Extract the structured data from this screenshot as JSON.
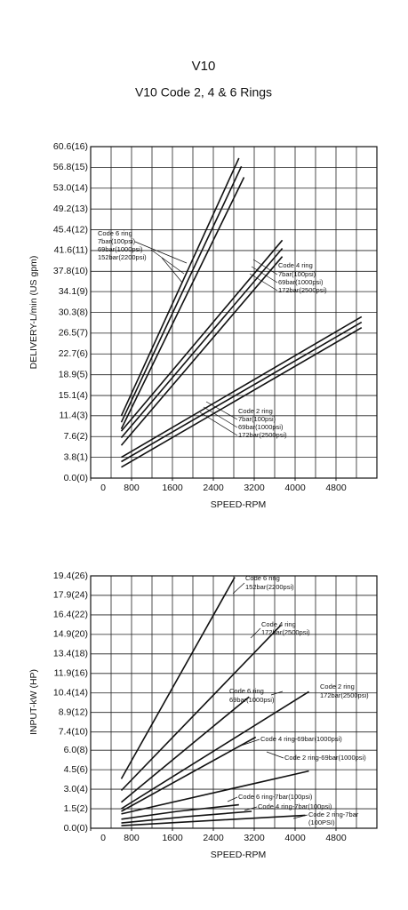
{
  "header": {
    "title": "V10",
    "subtitle": "V10 Code 2, 4 & 6 Rings"
  },
  "chart_data": [
    {
      "type": "line",
      "x_label": "SPEED-RPM",
      "y_label": "DELIVERY-L/min (US gpm)",
      "xlim": [
        0,
        5600
      ],
      "xticks": [
        0,
        800,
        1600,
        2400,
        3200,
        4000,
        4800
      ],
      "xgrid": [
        400,
        800,
        1200,
        1600,
        2000,
        2400,
        2800,
        3200,
        3600,
        4000,
        4400,
        4800,
        5200
      ],
      "ylim": [
        0,
        60.6
      ],
      "grid": true,
      "yticks": [
        {
          "value": 0,
          "label": "0.0(0)"
        },
        {
          "value": 3.8,
          "label": "3.8(1)"
        },
        {
          "value": 7.6,
          "label": "7.6(2)"
        },
        {
          "value": 11.4,
          "label": "11.4(3)"
        },
        {
          "value": 15.1,
          "label": "15.1(4)"
        },
        {
          "value": 18.9,
          "label": "18.9(5)"
        },
        {
          "value": 22.7,
          "label": "22.7(6)"
        },
        {
          "value": 26.5,
          "label": "26.5(7)"
        },
        {
          "value": 30.3,
          "label": "30.3(8)"
        },
        {
          "value": 34.1,
          "label": "34.1(9)"
        },
        {
          "value": 37.8,
          "label": "37.8(10)"
        },
        {
          "value": 41.6,
          "label": "41.6(11)"
        },
        {
          "value": 45.4,
          "label": "45.4(12)"
        },
        {
          "value": 49.2,
          "label": "49.2(13)"
        },
        {
          "value": 53.0,
          "label": "53.0(14)"
        },
        {
          "value": 56.8,
          "label": "56.8(15)"
        },
        {
          "value": 60.6,
          "label": "60.6(16)"
        }
      ],
      "series": [
        {
          "color": "#111111",
          "x": [
            600,
            2900
          ],
          "values": [
            11.4,
            58.5
          ]
        },
        {
          "color": "#111111",
          "x": [
            600,
            2950
          ],
          "values": [
            10.2,
            57.0
          ]
        },
        {
          "color": "#111111",
          "x": [
            600,
            3000
          ],
          "values": [
            9.0,
            55.0
          ]
        },
        {
          "color": "#111111",
          "x": [
            600,
            3750
          ],
          "values": [
            8.6,
            43.5
          ]
        },
        {
          "color": "#111111",
          "x": [
            600,
            3750
          ],
          "values": [
            7.4,
            42.0
          ]
        },
        {
          "color": "#111111",
          "x": [
            600,
            3750
          ],
          "values": [
            6.0,
            40.5
          ]
        },
        {
          "color": "#111111",
          "x": [
            600,
            5300
          ],
          "values": [
            3.8,
            29.5
          ]
        },
        {
          "color": "#111111",
          "x": [
            600,
            5300
          ],
          "values": [
            3.0,
            28.5
          ]
        },
        {
          "color": "#111111",
          "x": [
            600,
            5300
          ],
          "values": [
            2.0,
            27.5
          ]
        }
      ],
      "annotations": [
        "Code 6 ring",
        "7bar(100psi)",
        "69bar(1000psi)",
        "152bar(2200psi)",
        "Code 4 ring",
        "7bar(100psi)",
        "69bar(1000psi)",
        "172bar(2500psi)",
        "Code 2 ring",
        "7bar(100psi)",
        "69bar(1000psi)",
        "172bar(2500psi)"
      ]
    },
    {
      "type": "line",
      "x_label": "SPEED-RPM",
      "y_label": "INPUT-kW (HP)",
      "xlim": [
        0,
        5600
      ],
      "xticks": [
        0,
        800,
        1600,
        2400,
        3200,
        4000,
        4800
      ],
      "xgrid": [
        400,
        800,
        1200,
        1600,
        2000,
        2400,
        2800,
        3200,
        3600,
        4000,
        4400,
        4800,
        5200
      ],
      "ylim": [
        0,
        19.4
      ],
      "grid": true,
      "yticks": [
        {
          "value": 0,
          "label": "0.0(0)"
        },
        {
          "value": 1.5,
          "label": "1.5(2)"
        },
        {
          "value": 3.0,
          "label": "3.0(4)"
        },
        {
          "value": 4.5,
          "label": "4.5(6)"
        },
        {
          "value": 6.0,
          "label": "6.0(8)"
        },
        {
          "value": 7.4,
          "label": "7.4(10)"
        },
        {
          "value": 8.9,
          "label": "8.9(12)"
        },
        {
          "value": 10.4,
          "label": "10.4(14)"
        },
        {
          "value": 11.9,
          "label": "11.9(16)"
        },
        {
          "value": 13.4,
          "label": "13.4(18)"
        },
        {
          "value": 14.9,
          "label": "14.9(20)"
        },
        {
          "value": 16.4,
          "label": "16.4(22)"
        },
        {
          "value": 17.9,
          "label": "17.9(24)"
        },
        {
          "value": 19.4,
          "label": "19.4(26)"
        }
      ],
      "series": [
        {
          "color": "#111111",
          "x": [
            600,
            2820
          ],
          "values": [
            3.8,
            19.3
          ]
        },
        {
          "color": "#111111",
          "x": [
            600,
            3720
          ],
          "values": [
            2.9,
            15.6
          ]
        },
        {
          "color": "#111111",
          "x": [
            600,
            3100
          ],
          "values": [
            2.0,
            10.1
          ]
        },
        {
          "color": "#111111",
          "x": [
            600,
            4270
          ],
          "values": [
            1.5,
            10.5
          ]
        },
        {
          "color": "#111111",
          "x": [
            600,
            3230
          ],
          "values": [
            1.3,
            7.0
          ]
        },
        {
          "color": "#111111",
          "x": [
            600,
            4270
          ],
          "values": [
            1.1,
            4.4
          ]
        },
        {
          "color": "#111111",
          "x": [
            600,
            1700,
            2900
          ],
          "values": [
            0.7,
            1.3,
            1.8
          ]
        },
        {
          "color": "#111111",
          "x": [
            600,
            1900,
            3150
          ],
          "values": [
            0.4,
            0.9,
            1.3
          ]
        },
        {
          "color": "#111111",
          "x": [
            600,
            2400,
            4200
          ],
          "values": [
            0.2,
            0.6,
            1.0
          ]
        }
      ],
      "annotations": [
        "Code 6 ring",
        "152bar(2200psi)",
        "Code 4 ring",
        "172bar(2500psi)",
        "Code 6 ring",
        "69bar(1000psi)",
        "Code 2 ring",
        "172bar(2500psi)",
        "Code 4 ring-69bar(1000psi)",
        "Code 2 ring-69bar(1000psi)",
        "Code 6 ring-7bar(100psi)",
        "Code 4 ring-7bar(100psi)",
        "Code 2 ring-7bar",
        "(100PSI)"
      ]
    }
  ]
}
